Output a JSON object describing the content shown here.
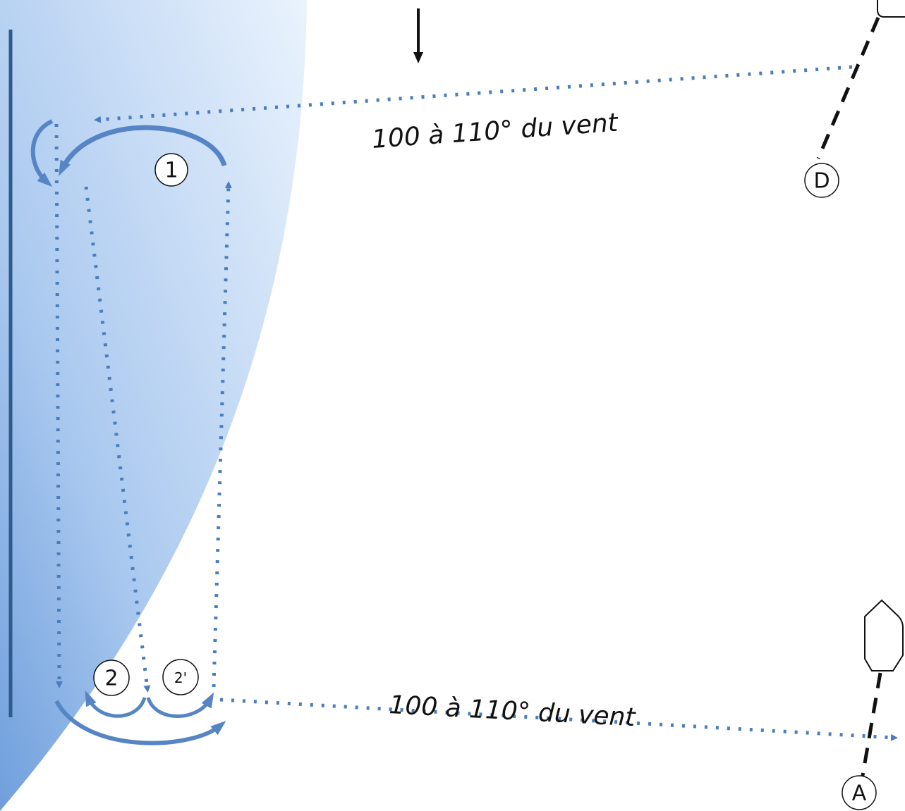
{
  "labels": {
    "top_heading": "100 à 110° du vent",
    "bottom_heading": "100 à 110° du vent"
  },
  "markers": {
    "m1": "1",
    "m2": "2",
    "m2prime": "2'",
    "start": "D",
    "finish": "A"
  },
  "colors": {
    "track": "#4a7ebb",
    "arrow": "#5585c5",
    "quay": "#2f5a8c",
    "zone_dark": "#6f9fdc",
    "zone_light": "#eaf3fd",
    "ink": "#111111"
  }
}
